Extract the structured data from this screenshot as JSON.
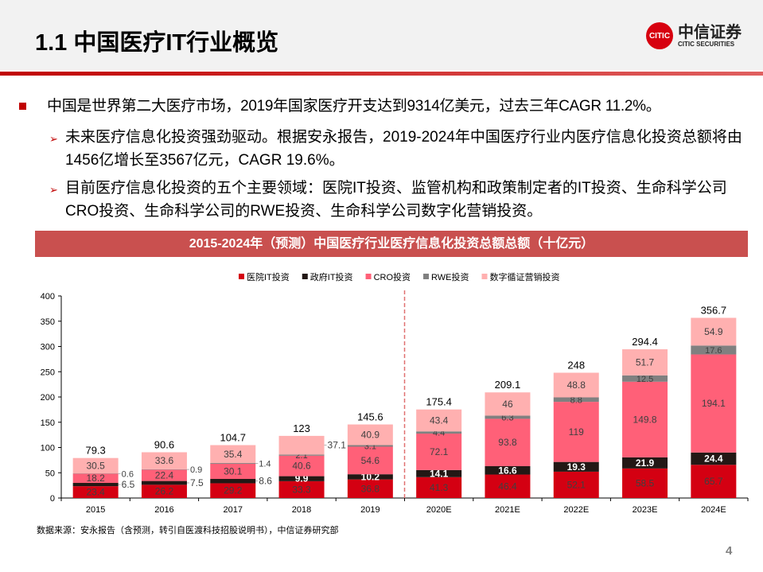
{
  "header": {
    "title": "1.1 中国医疗IT行业概览",
    "logo_cn": "中信证券",
    "logo_en": "CITIC SECURITIES",
    "logo_mark": "CITIC"
  },
  "bullets": {
    "main": "中国是世界第二大医疗市场，2019年国家医疗开支达到9314亿美元，过去三年CAGR 11.2%。",
    "sub1": "未来医疗信息化投资强劲驱动。根据安永报告，2019-2024年中国医疗行业内医疗信息化投资总额将由1456亿增长至3567亿元，CAGR 19.6%。",
    "sub2": "目前医疗信息化投资的五个主要领域：医院IT投资、监管机构和政策制定者的IT投资、生命科学公司CRO投资、生命科学公司的RWE投资、生命科学公司数字化营销投资。",
    "arrow": "➢"
  },
  "chart_data": {
    "type": "bar",
    "stacked": true,
    "title": "2015-2024年（预测）中国医疗行业医疗信息化投资总额总额（十亿元）",
    "categories": [
      "2015",
      "2016",
      "2017",
      "2018",
      "2019",
      "2020E",
      "2021E",
      "2022E",
      "2023E",
      "2024E"
    ],
    "ylim": [
      0,
      400
    ],
    "yticks": [
      0,
      50,
      100,
      150,
      200,
      250,
      300,
      350,
      400
    ],
    "legend_position": "top",
    "series": [
      {
        "name": "医院IT投资",
        "color": "#d40012",
        "values": [
          23.4,
          26.2,
          29.2,
          33.3,
          36.8,
          41.3,
          46.4,
          52.1,
          58.5,
          65.7
        ]
      },
      {
        "name": "政府IT投资",
        "color": "#231815",
        "values": [
          6.5,
          7.5,
          8.6,
          9.9,
          10.2,
          14.1,
          16.6,
          19.3,
          21.9,
          24.4
        ]
      },
      {
        "name": "CRO投资",
        "color": "#ff6078",
        "values": [
          18.2,
          22.4,
          30.1,
          40.6,
          54.6,
          72.1,
          93.8,
          119,
          149.8,
          194.1
        ]
      },
      {
        "name": "RWE投资",
        "color": "#808080",
        "values": [
          0.6,
          0.9,
          1.4,
          2.1,
          3.1,
          4.4,
          6.3,
          8.8,
          12.5,
          17.6
        ]
      },
      {
        "name": "数字循证营销投资",
        "color": "#ffb0b0",
        "values": [
          30.5,
          33.6,
          35.4,
          37.1,
          40.9,
          43.4,
          46,
          48.8,
          51.7,
          54.9
        ]
      }
    ],
    "totals": [
      "79.3",
      "90.6",
      "104.7",
      "123",
      "145.6",
      "175.4",
      "209.1",
      "248",
      "294.4",
      "356.7"
    ],
    "forecast_divider_after": "2019"
  },
  "footer": {
    "source": "数据来源：安永报告（含预测，转引自医渡科技招股说明书），中信证券研究部",
    "page": "4"
  }
}
